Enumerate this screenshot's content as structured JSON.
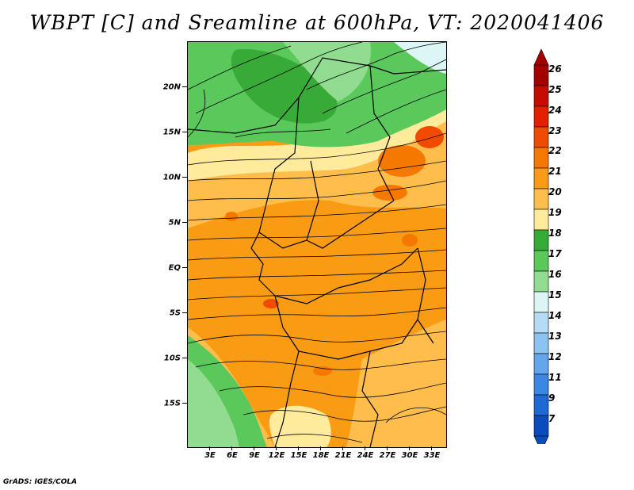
{
  "title": "WBPT [C] and Sreamline at 600hPa, VT: 2020041406",
  "footer": "GrADS: IGES/COLA",
  "axes": {
    "lat_labels": [
      "20N",
      "15N",
      "10N",
      "5N",
      "EQ",
      "5S",
      "10S",
      "15S"
    ],
    "lon_labels": [
      "3E",
      "6E",
      "9E",
      "12E",
      "15E",
      "18E",
      "21E",
      "24E",
      "27E",
      "30E",
      "33E"
    ]
  },
  "colorbar": {
    "labels": [
      "26",
      "25",
      "24",
      "23",
      "22",
      "21",
      "20",
      "19",
      "18",
      "17",
      "16",
      "15",
      "14",
      "13",
      "12",
      "11",
      "9",
      "7"
    ],
    "colors": [
      "#a50000",
      "#c80a00",
      "#e61e00",
      "#f04b00",
      "#f57800",
      "#fa9b14",
      "#ffbe4b",
      "#ffeb9b",
      "#37aa37",
      "#5ac85a",
      "#91dc91",
      "#dcf5f5",
      "#b4dcf5",
      "#8cc3f0",
      "#64a5eb",
      "#3c87e1",
      "#1e69d2",
      "#0a4bbe"
    ]
  },
  "map_colors": {
    "ocean_green": "#5ac85a",
    "dark_green": "#37aa37",
    "light_green": "#91dc91",
    "yellow": "#ffeb9b",
    "light_orange": "#ffbe4b",
    "orange": "#fa9b14",
    "deep_orange": "#f57800",
    "red_orange": "#f04b00",
    "pale_blue": "#dcf5f5"
  }
}
